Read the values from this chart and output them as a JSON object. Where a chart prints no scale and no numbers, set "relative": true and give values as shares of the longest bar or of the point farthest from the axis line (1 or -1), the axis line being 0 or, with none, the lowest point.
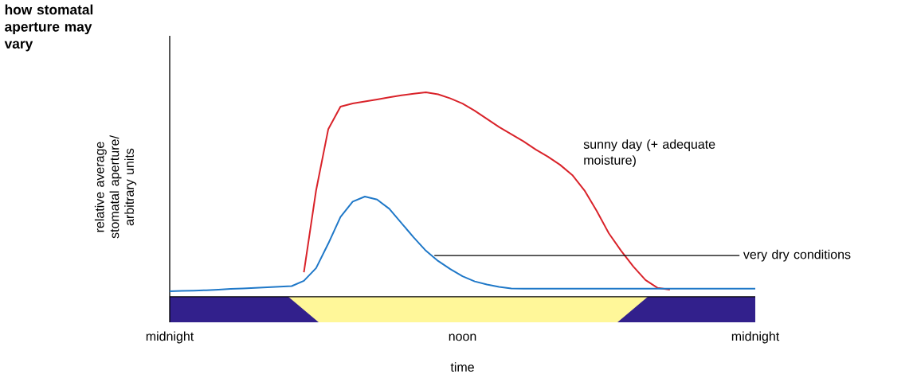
{
  "chart_data": {
    "type": "line",
    "relative": true,
    "title": "how stomatal aperture may vary",
    "xlabel": "time",
    "ylabel": "relative average stomatal aperture/ arbitrary units",
    "categories": [
      "midnight",
      null,
      null,
      null,
      null,
      null,
      null,
      null,
      null,
      null,
      null,
      null,
      null,
      null,
      null,
      null,
      null,
      null,
      null,
      null,
      null,
      null,
      null,
      null,
      "noon",
      null,
      null,
      null,
      null,
      null,
      null,
      null,
      null,
      null,
      null,
      null,
      null,
      null,
      null,
      null,
      null,
      null,
      null,
      null,
      null,
      null,
      null,
      null,
      "midnight"
    ],
    "legend": false,
    "marker": "none",
    "line_style": "solid",
    "series": [
      {
        "name": "sunny day (+ adequate moisture)",
        "color": "#d9232a",
        "values": [
          null,
          null,
          null,
          null,
          null,
          null,
          null,
          null,
          null,
          null,
          null,
          0.12,
          0.52,
          0.82,
          0.93,
          0.945,
          0.955,
          0.965,
          0.975,
          0.985,
          0.993,
          1.0,
          0.99,
          0.97,
          0.945,
          0.91,
          0.87,
          0.83,
          0.795,
          0.76,
          0.72,
          0.685,
          0.645,
          0.595,
          0.52,
          0.42,
          0.31,
          0.225,
          0.148,
          0.082,
          0.043,
          0.035,
          null,
          null,
          null,
          null,
          null,
          null,
          null
        ]
      },
      {
        "name": "very dry conditions",
        "color": "#1f78c8",
        "values": [
          0.027,
          0.029,
          0.03,
          0.032,
          0.035,
          0.038,
          0.04,
          0.043,
          0.046,
          0.049,
          0.052,
          0.078,
          0.14,
          0.26,
          0.39,
          0.465,
          0.49,
          0.475,
          0.43,
          0.36,
          0.29,
          0.225,
          0.175,
          0.135,
          0.1,
          0.075,
          0.06,
          0.048,
          0.04,
          0.039,
          0.039,
          0.039,
          0.039,
          0.039,
          0.039,
          0.039,
          0.039,
          0.039,
          0.039,
          0.039,
          0.039,
          0.039,
          0.039,
          0.039,
          0.039,
          0.039,
          0.039,
          0.039,
          0.039
        ]
      }
    ]
  }
}
